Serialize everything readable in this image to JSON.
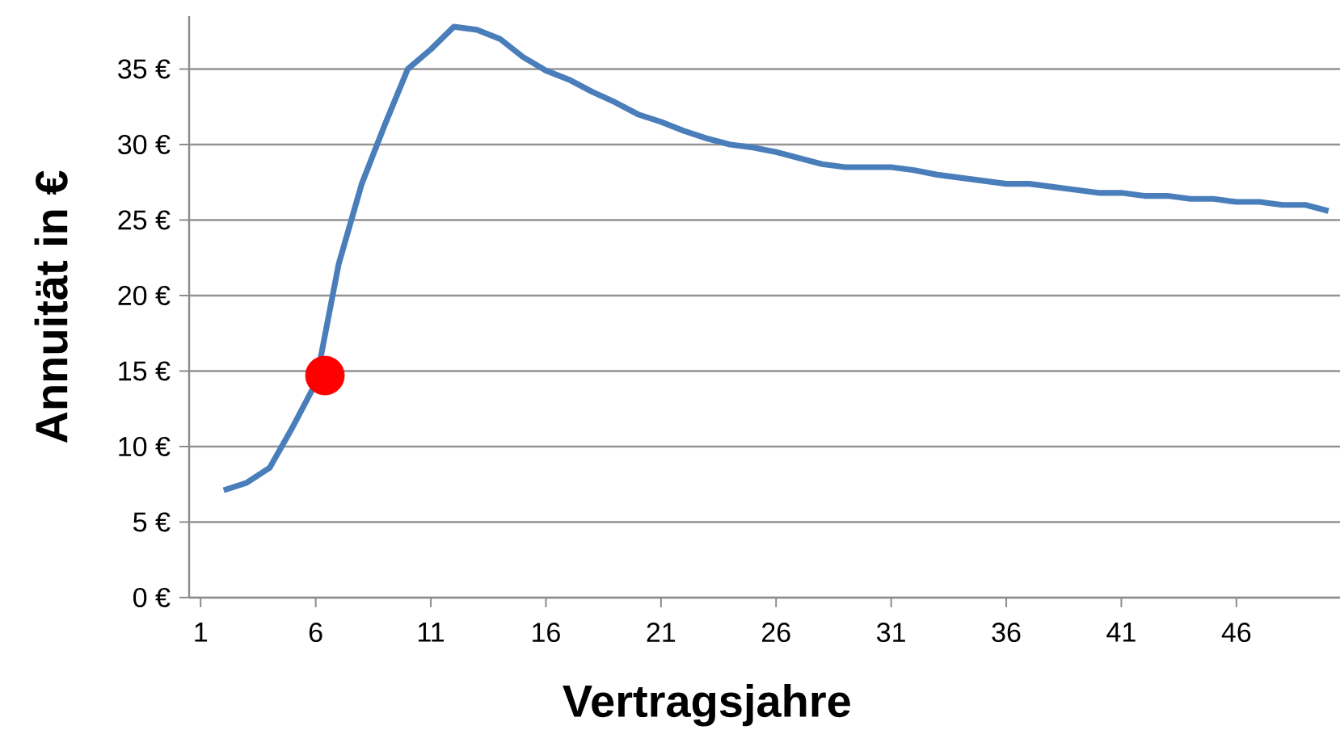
{
  "chart_data": {
    "type": "line",
    "xlabel": "Vertragsjahre",
    "ylabel": "Annuität in €",
    "xlim": [
      0.5,
      50.5
    ],
    "xticks": [
      1,
      6,
      11,
      16,
      21,
      26,
      31,
      36,
      41,
      46
    ],
    "ylim": [
      0,
      38.5
    ],
    "yticks": [
      {
        "value": 0,
        "label": "0 €"
      },
      {
        "value": 5,
        "label": "5 €"
      },
      {
        "value": 10,
        "label": "10 €"
      },
      {
        "value": 15,
        "label": "15 €"
      },
      {
        "value": 20,
        "label": "20 €"
      },
      {
        "value": 25,
        "label": "25 €"
      },
      {
        "value": 30,
        "label": "30 €"
      },
      {
        "value": 35,
        "label": "35 €"
      }
    ],
    "grid": "y",
    "legend": false,
    "series": [
      {
        "color": "#4a7ebb",
        "marker": "none",
        "x": [
          2,
          3,
          4,
          5,
          6,
          7,
          8,
          9,
          10,
          11,
          12,
          13,
          14,
          15,
          16,
          17,
          18,
          19,
          20,
          21,
          22,
          23,
          24,
          25,
          26,
          27,
          28,
          29,
          30,
          31,
          32,
          33,
          34,
          35,
          36,
          37,
          38,
          39,
          40,
          41,
          42,
          43,
          44,
          45,
          46,
          47,
          48,
          49,
          50
        ],
        "values": [
          7.1,
          7.6,
          8.6,
          11.3,
          14.2,
          22.1,
          27.4,
          31.3,
          35.0,
          36.3,
          37.8,
          37.6,
          37.0,
          35.8,
          34.9,
          34.3,
          33.5,
          32.8,
          32.0,
          31.5,
          30.9,
          30.4,
          30.0,
          29.8,
          29.5,
          29.1,
          28.7,
          28.5,
          28.5,
          28.5,
          28.3,
          28.0,
          27.8,
          27.6,
          27.4,
          27.4,
          27.2,
          27.0,
          26.8,
          26.8,
          26.6,
          26.6,
          26.4,
          26.4,
          26.2,
          26.2,
          26.0,
          26.0,
          25.6
        ]
      },
      {
        "type": "scatter",
        "color": "#ff0000",
        "marker": "circle",
        "x": [
          6.4
        ],
        "values": [
          14.7
        ]
      }
    ]
  }
}
